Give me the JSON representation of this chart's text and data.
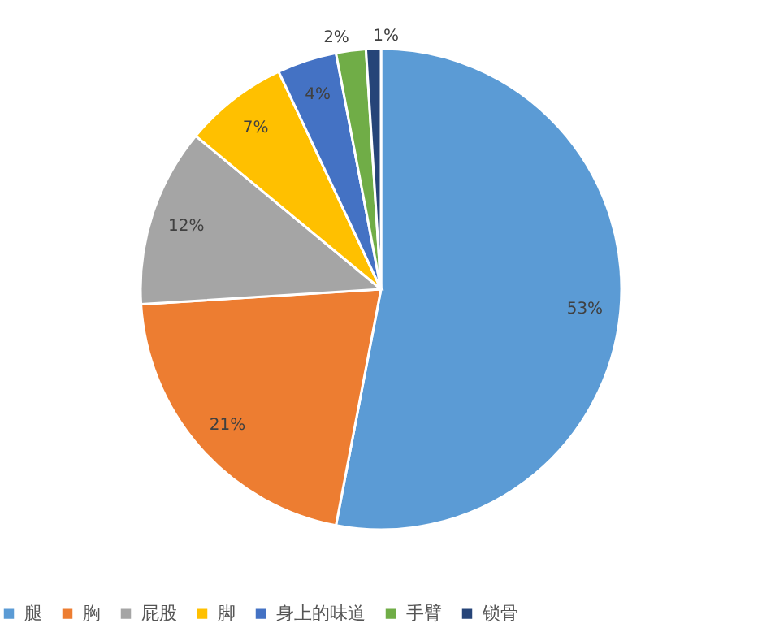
{
  "chart_data": {
    "type": "pie",
    "categories": [
      "腿",
      "胸",
      "屁股",
      "脚",
      "身上的味道",
      "手臂",
      "锁骨"
    ],
    "values": [
      53,
      21,
      12,
      7,
      4,
      2,
      1
    ],
    "colors": [
      "#5b9bd5",
      "#ed7d31",
      "#a5a5a5",
      "#ffc000",
      "#4472c4",
      "#70ad47",
      "#264478"
    ],
    "value_labels": [
      "53%",
      "21%",
      "12%",
      "7%",
      "4%",
      "2%",
      "1%"
    ],
    "legend": "bottom"
  }
}
